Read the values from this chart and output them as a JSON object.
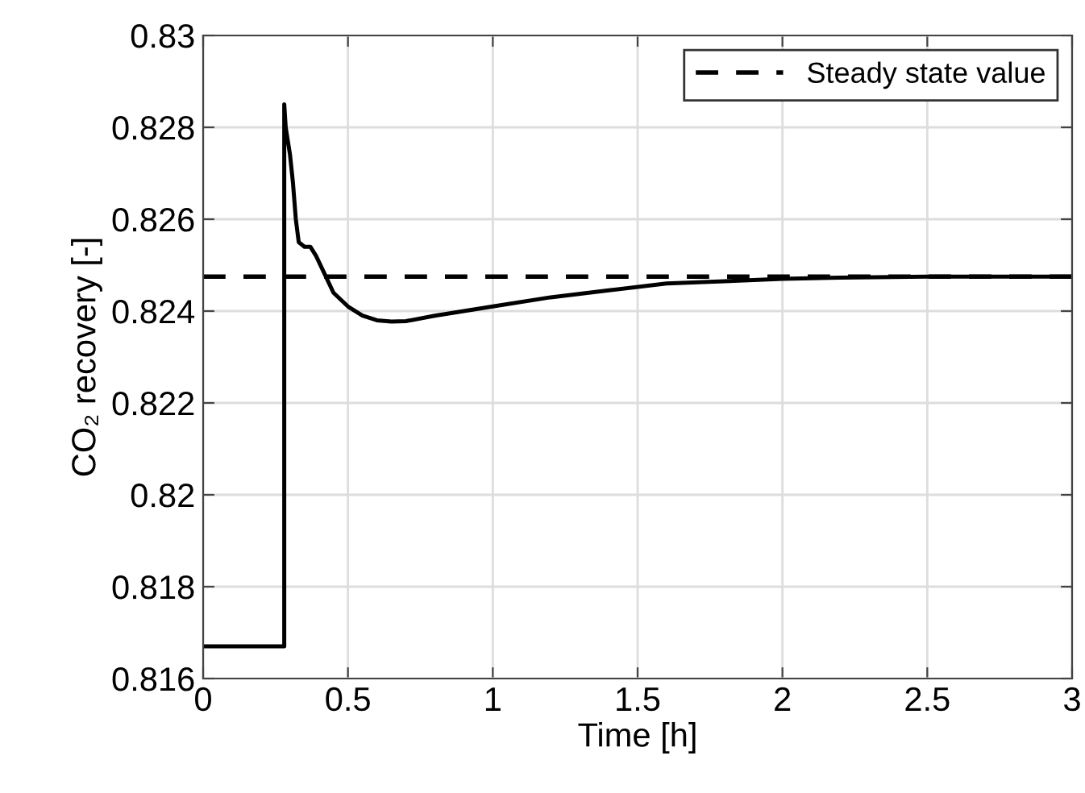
{
  "chart_data": {
    "type": "line",
    "xlabel": "Time [h]",
    "ylabel": "CO₂ recovery [-]",
    "xlim": [
      0,
      3
    ],
    "xticks": [
      0,
      0.5,
      1,
      1.5,
      2,
      2.5,
      3
    ],
    "ylim": [
      0.816,
      0.83
    ],
    "yticks": [
      0.816,
      0.818,
      0.82,
      0.822,
      0.824,
      0.826,
      0.828,
      0.83
    ],
    "grid": true,
    "legend": "top right",
    "line_style": "solid",
    "marker": "none",
    "series": [
      {
        "color": "#000000",
        "x": [
          0,
          0.28,
          0.28,
          0.285,
          0.29,
          0.3,
          0.31,
          0.32,
          0.33,
          0.35,
          0.37,
          0.39,
          0.42,
          0.45,
          0.5,
          0.55,
          0.6,
          0.65,
          0.7,
          0.8,
          0.9,
          1.0,
          1.2,
          1.4,
          1.6,
          1.8,
          2.0,
          2.2,
          2.5,
          3.0
        ],
        "values": [
          0.8167,
          0.8167,
          0.8285,
          0.828,
          0.8278,
          0.8274,
          0.8268,
          0.826,
          0.8255,
          0.8254,
          0.8254,
          0.8252,
          0.8248,
          0.8244,
          0.8241,
          0.8239,
          0.8238,
          0.82377,
          0.82378,
          0.8239,
          0.824,
          0.8241,
          0.8243,
          0.82445,
          0.8246,
          0.82465,
          0.8247,
          0.82473,
          0.82475,
          0.82475
        ]
      }
    ],
    "ref_lines": [
      {
        "axis": "y",
        "value": 0.82475,
        "label": "Steady state value",
        "color": "#000000",
        "line_style": "dashed"
      }
    ]
  }
}
